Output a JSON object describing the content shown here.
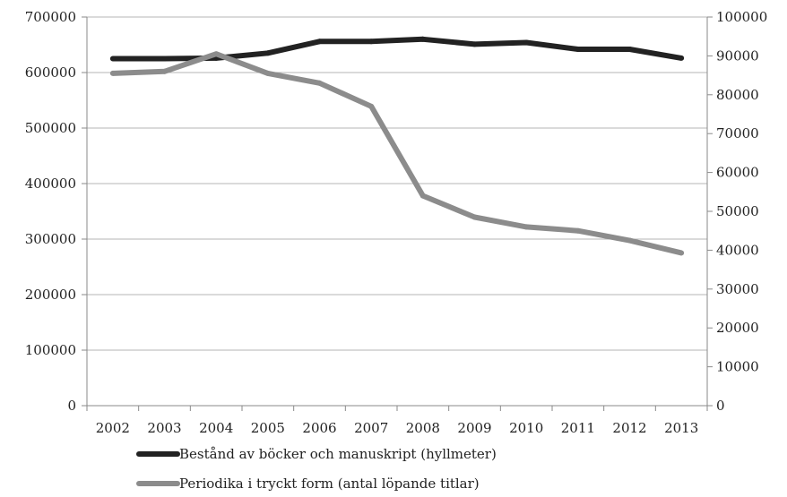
{
  "chart_data": {
    "type": "line",
    "title": "",
    "xlabel": "",
    "ylabel": "",
    "categories": [
      "2002",
      "2003",
      "2004",
      "2005",
      "2006",
      "2007",
      "2008",
      "2009",
      "2010",
      "2011",
      "2012",
      "2013"
    ],
    "y_left": {
      "range": [
        0,
        700000
      ],
      "ticks": [
        "0",
        "100000",
        "200000",
        "300000",
        "400000",
        "500000",
        "600000",
        "700000"
      ]
    },
    "y_right": {
      "range": [
        0,
        100000
      ],
      "ticks": [
        "0",
        "10000",
        "20000",
        "30000",
        "40000",
        "50000",
        "60000",
        "70000",
        "80000",
        "90000",
        "100000"
      ]
    },
    "grid": true,
    "legend_position": "bottom",
    "series": [
      {
        "name": "Bestånd av böcker och manuskript (hyllmeter)",
        "axis": "left",
        "color": "#222222",
        "values": [
          625000,
          625000,
          626000,
          635000,
          656000,
          656000,
          660000,
          651000,
          654000,
          642000,
          642000,
          626000
        ]
      },
      {
        "name": "Periodika i tryckt form (antal löpande titlar)",
        "axis": "right",
        "color": "#8c8c8c",
        "values": [
          85500,
          86000,
          90500,
          85500,
          83000,
          77000,
          54000,
          48500,
          46000,
          45000,
          42500,
          39300
        ]
      }
    ]
  }
}
